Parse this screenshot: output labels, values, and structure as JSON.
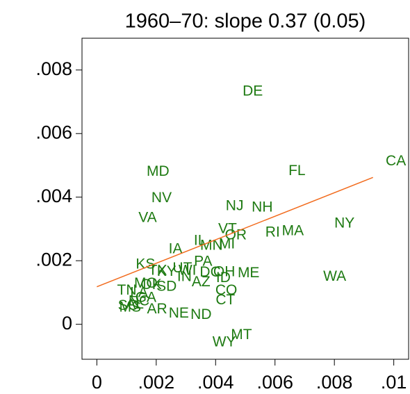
{
  "chart_data": {
    "type": "scatter",
    "title": "1960–70: slope 0.37 (0.05)",
    "labels": [
      "DE",
      "CA",
      "FL",
      "MD",
      "NV",
      "VA",
      "NJ",
      "NH",
      "NY",
      "RI",
      "MA",
      "VT",
      "OR",
      "IL",
      "MN",
      "MI",
      "IA",
      "PA",
      "KS",
      "ME",
      "WA",
      "OH",
      "DC",
      "UT",
      "WI",
      "KY",
      "TX",
      "AZ",
      "ID",
      "CO",
      "CT",
      "IN",
      "SD",
      "OK",
      "MO",
      "TN",
      "LA",
      "GA",
      "NC",
      "AL",
      "AR",
      "SC",
      "MS",
      "NE",
      "ND",
      "MT",
      "WY"
    ],
    "x": [
      0.00525,
      0.01007,
      0.00674,
      0.00206,
      0.00218,
      0.00171,
      0.00464,
      0.00557,
      0.00834,
      0.00592,
      0.0066,
      0.0044,
      0.00468,
      0.00347,
      0.00386,
      0.00438,
      0.00265,
      0.00358,
      0.00164,
      0.00511,
      0.00801,
      0.00429,
      0.00382,
      0.00288,
      0.00305,
      0.00235,
      0.00205,
      0.00351,
      0.00426,
      0.00436,
      0.00433,
      0.00295,
      0.00235,
      0.00183,
      0.00165,
      0.00101,
      0.00142,
      0.00165,
      0.00142,
      0.00128,
      0.00203,
      0.00105,
      0.00112,
      0.00276,
      0.00351,
      0.00487,
      0.00429
    ],
    "y": [
      0.00732,
      0.00512,
      0.00481,
      0.00479,
      0.00396,
      0.00334,
      0.00371,
      0.00367,
      0.00316,
      0.00288,
      0.00292,
      0.00299,
      0.00279,
      0.00262,
      0.00246,
      0.00251,
      0.00235,
      0.00196,
      0.00187,
      0.0016,
      0.00149,
      0.00163,
      0.00162,
      0.00175,
      0.00168,
      0.00165,
      0.00168,
      0.00132,
      0.00145,
      0.00105,
      0.00075,
      0.00148,
      0.00118,
      0.00123,
      0.00127,
      0.00105,
      0.00098,
      0.00082,
      0.00072,
      0.00062,
      0.00046,
      0.00057,
      0.00052,
      0.00033,
      0.00029,
      -0.00035,
      -0.00057
    ],
    "fit": {
      "color": "#f26b1d",
      "x": [
        0,
        0.0093
      ],
      "y": [
        0.00118,
        0.00462
      ]
    },
    "color": "#1e7a12",
    "xlim": [
      -0.0005,
      0.0105
    ],
    "ylim": [
      -0.0011,
      0.009
    ],
    "xticks": [
      0,
      {
        "value": 0.002,
        "label": ".002"
      },
      {
        "value": 0.004,
        "label": ".004"
      },
      {
        "value": 0.006,
        "label": ".006"
      },
      {
        "value": 0.008,
        "label": ".008"
      },
      {
        "value": 0.01,
        "label": ".01"
      }
    ],
    "yticks": [
      0,
      {
        "value": 0.002,
        "label": ".002"
      },
      {
        "value": 0.004,
        "label": ".004"
      },
      {
        "value": 0.006,
        "label": ".006"
      },
      {
        "value": 0.008,
        "label": ".008"
      }
    ]
  }
}
